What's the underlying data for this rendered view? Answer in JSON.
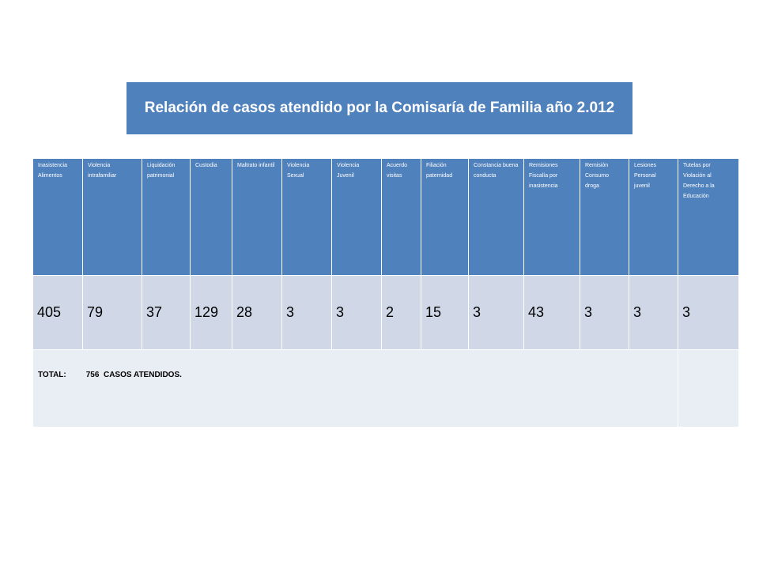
{
  "title": "Relación de casos atendido por la Comisaría de Familia año 2.012",
  "table": {
    "headers": [
      "Inasistencia Alimentos",
      "Violencia intrafamiliar",
      "Liquidación patrimonial",
      "Custodia",
      "Maltrato infantil",
      "Violencia Sexual",
      "Violencia Juvenil",
      "Acuerdo visitas",
      "Filiación paternidad",
      "Constancia buena conducta",
      "Remisiones Fiscalía por inasistencia",
      "Remisión Consumo droga",
      "Lesiones Personal juvenil",
      "Tutelas por Violación al Derecho a la Educación"
    ],
    "values": [
      "405",
      "79",
      "37",
      "129",
      "28",
      "3",
      "3",
      "2",
      "15",
      "3",
      "43",
      "3",
      "3",
      "3"
    ],
    "total_label": "TOTAL:",
    "total_text": "756  CASOS ATENDIDOS."
  }
}
